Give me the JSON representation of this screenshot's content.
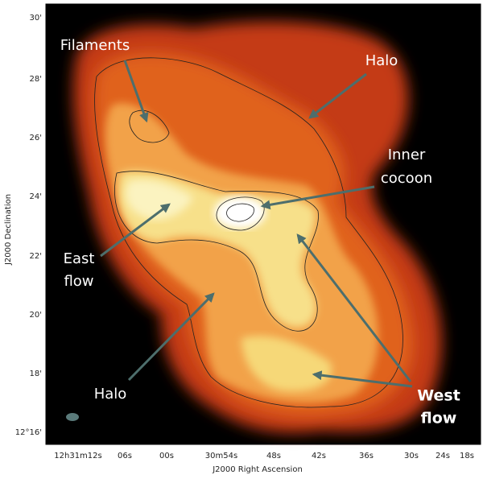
{
  "axes": {
    "y_title": "J2000 Declination",
    "x_title": "J2000 Right Ascension",
    "y_ticks": [
      "30'",
      "28'",
      "26'",
      "24'",
      "22'",
      "20'",
      "18'",
      "12°16'"
    ],
    "x_ticks": [
      "12h31m12s",
      "06s",
      "00s",
      "30m54s",
      "48s",
      "42s",
      "36s",
      "30s",
      "24s",
      "18s"
    ]
  },
  "annotations": {
    "filaments": "Filaments",
    "halo_top": "Halo",
    "inner_cocoon": [
      "Inner",
      "cocoon"
    ],
    "east_flow": [
      "East",
      "flow"
    ],
    "halo_bottom": "Halo",
    "west_flow": [
      "West",
      "flow"
    ]
  }
}
